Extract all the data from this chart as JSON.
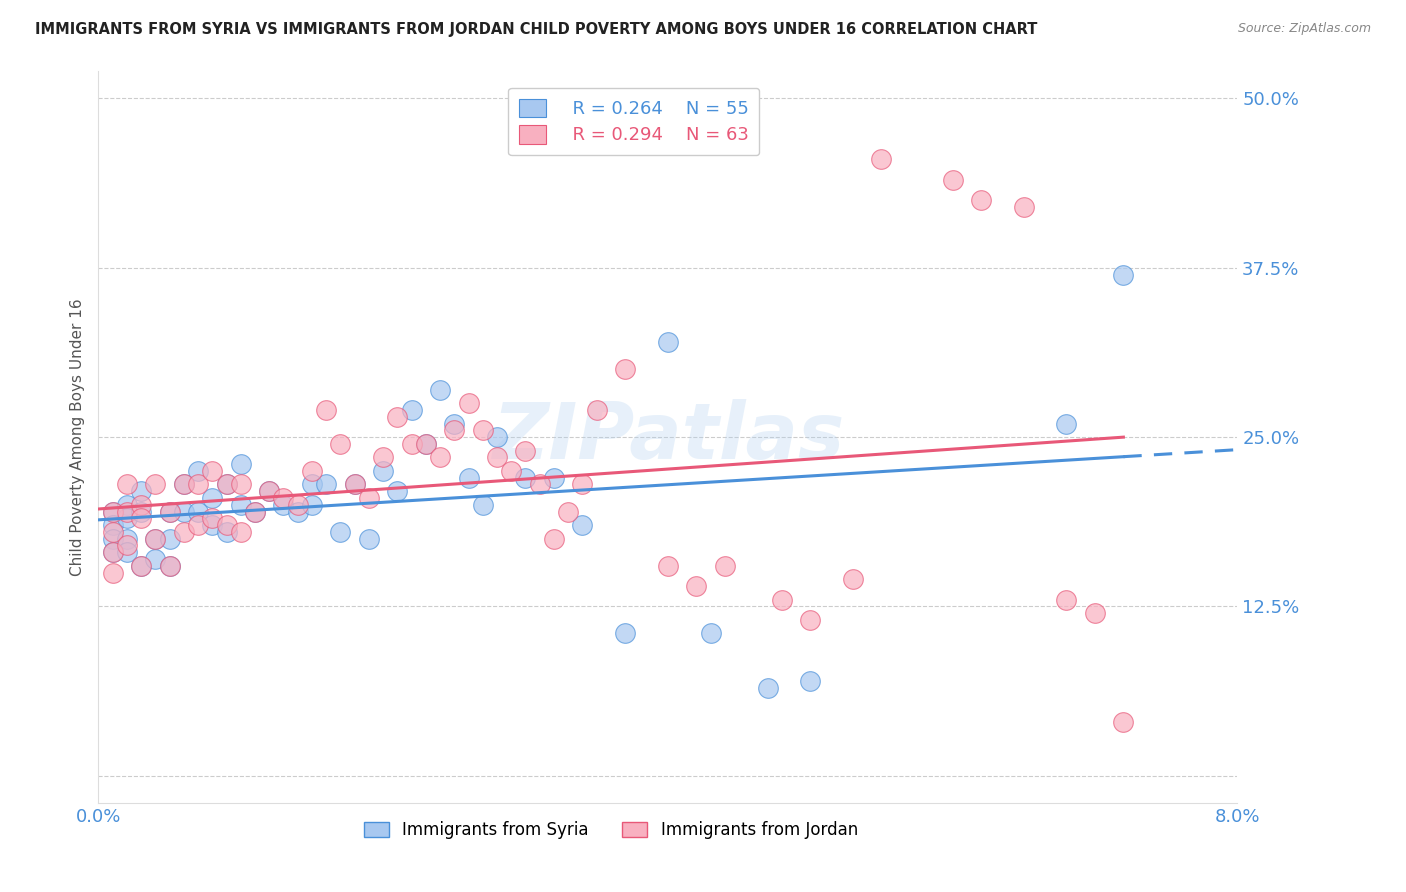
{
  "title": "IMMIGRANTS FROM SYRIA VS IMMIGRANTS FROM JORDAN CHILD POVERTY AMONG BOYS UNDER 16 CORRELATION CHART",
  "source": "Source: ZipAtlas.com",
  "ylabel": "Child Poverty Among Boys Under 16",
  "xlim": [
    0.0,
    0.08
  ],
  "ylim": [
    -0.02,
    0.52
  ],
  "ytick_vals": [
    0.0,
    0.125,
    0.25,
    0.375,
    0.5
  ],
  "ytick_labels": [
    "",
    "12.5%",
    "25.0%",
    "37.5%",
    "50.0%"
  ],
  "xtick_vals": [
    0.0,
    0.02,
    0.04,
    0.06,
    0.08
  ],
  "xtick_labels": [
    "0.0%",
    "",
    "",
    "",
    "8.0%"
  ],
  "syria_color": "#a8c8f0",
  "jordan_color": "#f8b0c0",
  "syria_line_color": "#4a90d9",
  "jordan_line_color": "#e85878",
  "legend_syria_R": "0.264",
  "legend_syria_N": "55",
  "legend_jordan_R": "0.294",
  "legend_jordan_N": "63",
  "background_color": "#ffffff",
  "grid_color": "#cccccc",
  "watermark": "ZIPatlas",
  "syria_x": [
    0.001,
    0.001,
    0.001,
    0.001,
    0.002,
    0.002,
    0.002,
    0.002,
    0.003,
    0.003,
    0.003,
    0.004,
    0.004,
    0.005,
    0.005,
    0.005,
    0.006,
    0.006,
    0.007,
    0.007,
    0.008,
    0.008,
    0.009,
    0.009,
    0.01,
    0.01,
    0.011,
    0.012,
    0.013,
    0.014,
    0.015,
    0.015,
    0.016,
    0.017,
    0.018,
    0.019,
    0.02,
    0.021,
    0.022,
    0.023,
    0.024,
    0.025,
    0.026,
    0.027,
    0.028,
    0.03,
    0.032,
    0.034,
    0.037,
    0.04,
    0.043,
    0.047,
    0.05,
    0.068,
    0.072
  ],
  "syria_y": [
    0.195,
    0.185,
    0.175,
    0.165,
    0.2,
    0.19,
    0.175,
    0.165,
    0.21,
    0.195,
    0.155,
    0.175,
    0.16,
    0.195,
    0.175,
    0.155,
    0.215,
    0.195,
    0.225,
    0.195,
    0.205,
    0.185,
    0.215,
    0.18,
    0.23,
    0.2,
    0.195,
    0.21,
    0.2,
    0.195,
    0.215,
    0.2,
    0.215,
    0.18,
    0.215,
    0.175,
    0.225,
    0.21,
    0.27,
    0.245,
    0.285,
    0.26,
    0.22,
    0.2,
    0.25,
    0.22,
    0.22,
    0.185,
    0.105,
    0.32,
    0.105,
    0.065,
    0.07,
    0.26,
    0.37
  ],
  "jordan_x": [
    0.001,
    0.001,
    0.001,
    0.001,
    0.002,
    0.002,
    0.002,
    0.003,
    0.003,
    0.003,
    0.004,
    0.004,
    0.005,
    0.005,
    0.006,
    0.006,
    0.007,
    0.007,
    0.008,
    0.008,
    0.009,
    0.009,
    0.01,
    0.01,
    0.011,
    0.012,
    0.013,
    0.014,
    0.015,
    0.016,
    0.017,
    0.018,
    0.019,
    0.02,
    0.021,
    0.022,
    0.023,
    0.024,
    0.025,
    0.026,
    0.027,
    0.028,
    0.029,
    0.03,
    0.031,
    0.032,
    0.033,
    0.034,
    0.035,
    0.037,
    0.04,
    0.042,
    0.044,
    0.048,
    0.05,
    0.053,
    0.055,
    0.06,
    0.062,
    0.065,
    0.068,
    0.07,
    0.072
  ],
  "jordan_y": [
    0.195,
    0.18,
    0.165,
    0.15,
    0.215,
    0.195,
    0.17,
    0.2,
    0.19,
    0.155,
    0.215,
    0.175,
    0.195,
    0.155,
    0.215,
    0.18,
    0.215,
    0.185,
    0.225,
    0.19,
    0.215,
    0.185,
    0.215,
    0.18,
    0.195,
    0.21,
    0.205,
    0.2,
    0.225,
    0.27,
    0.245,
    0.215,
    0.205,
    0.235,
    0.265,
    0.245,
    0.245,
    0.235,
    0.255,
    0.275,
    0.255,
    0.235,
    0.225,
    0.24,
    0.215,
    0.175,
    0.195,
    0.215,
    0.27,
    0.3,
    0.155,
    0.14,
    0.155,
    0.13,
    0.115,
    0.145,
    0.455,
    0.44,
    0.425,
    0.42,
    0.13,
    0.12,
    0.04
  ]
}
